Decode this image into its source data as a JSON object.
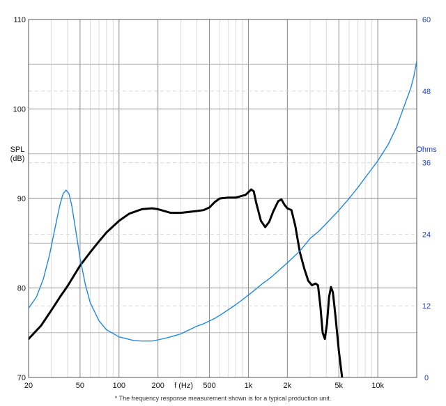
{
  "chart_data": {
    "type": "line",
    "x_scale": "log",
    "xlim": [
      20,
      20000
    ],
    "ylim": [
      70,
      110
    ],
    "y2lim": [
      0,
      60
    ],
    "grid": true,
    "xlabel": "f (Hz)",
    "ylabel_line1": "SPL",
    "ylabel_line2": "(dB)",
    "y2label": "Ohms",
    "x_ticks": [
      {
        "value": 20,
        "label": "20"
      },
      {
        "value": 50,
        "label": "50"
      },
      {
        "value": 100,
        "label": "100"
      },
      {
        "value": 200,
        "label": "200"
      },
      {
        "value": 500,
        "label": "500"
      },
      {
        "value": 1000,
        "label": "1k"
      },
      {
        "value": 2000,
        "label": "2k"
      },
      {
        "value": 5000,
        "label": "5k"
      },
      {
        "value": 10000,
        "label": "10k"
      }
    ],
    "y_ticks": [
      {
        "value": 70,
        "label": "70"
      },
      {
        "value": 80,
        "label": "80"
      },
      {
        "value": 90,
        "label": "90"
      },
      {
        "value": 100,
        "label": "100"
      },
      {
        "value": 110,
        "label": "110"
      }
    ],
    "y2_ticks": [
      {
        "value": 0,
        "label": "0"
      },
      {
        "value": 12,
        "label": "12"
      },
      {
        "value": 24,
        "label": "24"
      },
      {
        "value": 36,
        "label": "36"
      },
      {
        "value": 48,
        "label": "48"
      },
      {
        "value": 60,
        "label": "60"
      }
    ],
    "series": [
      {
        "axis": "left",
        "color": "#000000",
        "points": [
          [
            20,
            74.3
          ],
          [
            25,
            75.8
          ],
          [
            30,
            77.5
          ],
          [
            35,
            79.0
          ],
          [
            40,
            80.2
          ],
          [
            50,
            82.5
          ],
          [
            60,
            84.0
          ],
          [
            70,
            85.2
          ],
          [
            80,
            86.2
          ],
          [
            100,
            87.5
          ],
          [
            120,
            88.3
          ],
          [
            150,
            88.8
          ],
          [
            180,
            88.9
          ],
          [
            200,
            88.8
          ],
          [
            250,
            88.4
          ],
          [
            300,
            88.4
          ],
          [
            400,
            88.6
          ],
          [
            450,
            88.7
          ],
          [
            500,
            89.0
          ],
          [
            550,
            89.6
          ],
          [
            600,
            90.0
          ],
          [
            700,
            90.1
          ],
          [
            800,
            90.1
          ],
          [
            900,
            90.3
          ],
          [
            950,
            90.4
          ],
          [
            1000,
            90.7
          ],
          [
            1050,
            91.0
          ],
          [
            1100,
            90.8
          ],
          [
            1150,
            89.5
          ],
          [
            1250,
            87.5
          ],
          [
            1350,
            86.8
          ],
          [
            1450,
            87.4
          ],
          [
            1550,
            88.5
          ],
          [
            1700,
            89.7
          ],
          [
            1800,
            89.9
          ],
          [
            1900,
            89.3
          ],
          [
            2000,
            88.9
          ],
          [
            2150,
            88.7
          ],
          [
            2300,
            87.0
          ],
          [
            2500,
            84.0
          ],
          [
            2700,
            82.2
          ],
          [
            2900,
            80.8
          ],
          [
            3100,
            80.3
          ],
          [
            3300,
            80.5
          ],
          [
            3450,
            80.3
          ],
          [
            3600,
            78.0
          ],
          [
            3750,
            75.0
          ],
          [
            3900,
            74.3
          ],
          [
            4050,
            76.0
          ],
          [
            4200,
            79.0
          ],
          [
            4350,
            80.1
          ],
          [
            4500,
            79.5
          ],
          [
            4700,
            77.0
          ],
          [
            5000,
            73.0
          ],
          [
            5300,
            70.0
          ]
        ]
      },
      {
        "axis": "right",
        "color": "#1e88e5",
        "points": [
          [
            20,
            11.6
          ],
          [
            23,
            13.5
          ],
          [
            26,
            16.5
          ],
          [
            29,
            20.5
          ],
          [
            32,
            25.0
          ],
          [
            35,
            29.0
          ],
          [
            37,
            30.8
          ],
          [
            39,
            31.4
          ],
          [
            41,
            30.8
          ],
          [
            43,
            29.0
          ],
          [
            46,
            25.0
          ],
          [
            50,
            20.0
          ],
          [
            55,
            15.5
          ],
          [
            60,
            12.5
          ],
          [
            70,
            9.5
          ],
          [
            80,
            8.0
          ],
          [
            100,
            6.8
          ],
          [
            130,
            6.2
          ],
          [
            150,
            6.1
          ],
          [
            180,
            6.1
          ],
          [
            200,
            6.3
          ],
          [
            230,
            6.6
          ],
          [
            250,
            6.8
          ],
          [
            300,
            7.3
          ],
          [
            400,
            8.6
          ],
          [
            450,
            9.0
          ],
          [
            550,
            9.9
          ],
          [
            600,
            10.4
          ],
          [
            800,
            12.2
          ],
          [
            1000,
            13.8
          ],
          [
            1300,
            15.8
          ],
          [
            1500,
            16.8
          ],
          [
            2000,
            19.2
          ],
          [
            2500,
            21.2
          ],
          [
            3000,
            23.3
          ],
          [
            3500,
            24.5
          ],
          [
            4000,
            25.8
          ],
          [
            5000,
            28.0
          ],
          [
            6000,
            30.0
          ],
          [
            7000,
            31.8
          ],
          [
            8000,
            33.5
          ],
          [
            10000,
            36.3
          ],
          [
            12000,
            39.0
          ],
          [
            14000,
            42.0
          ],
          [
            16000,
            45.5
          ],
          [
            18000,
            48.5
          ],
          [
            19000,
            50.5
          ],
          [
            20000,
            53.0
          ]
        ]
      }
    ],
    "footnote": "* The frequency response measurement shown is for a typical production unit."
  }
}
